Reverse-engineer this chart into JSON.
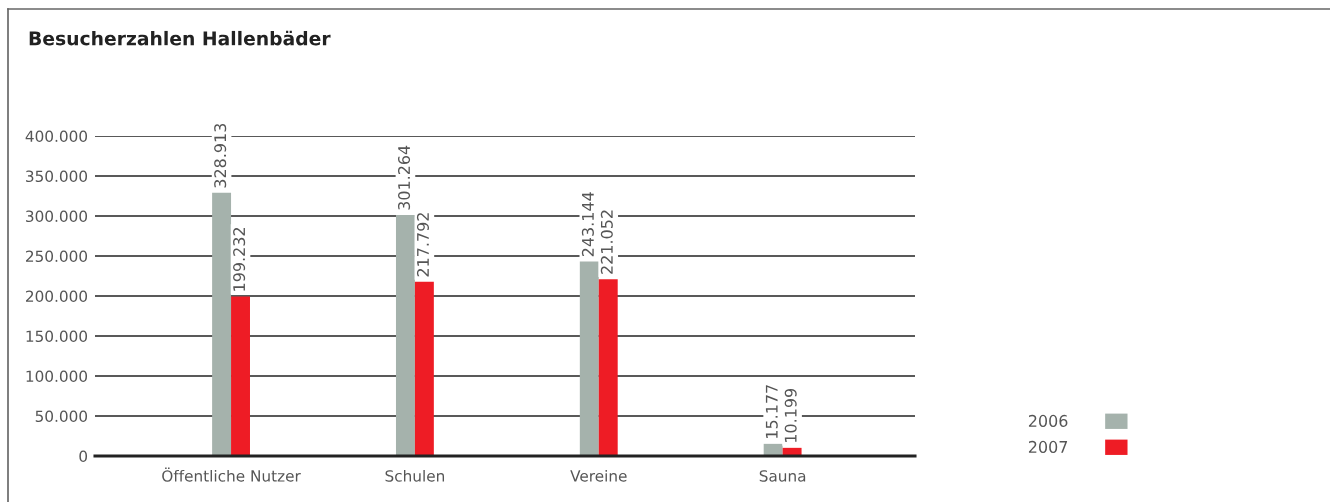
{
  "chart_data": {
    "type": "bar",
    "title": "Besucherzahlen Hallenbäder",
    "categories": [
      "Öffentliche Nutzer",
      "Schulen",
      "Vereine",
      "Sauna"
    ],
    "series": [
      {
        "name": "2006",
        "color": "#a5b2ac",
        "values": [
          328913,
          301264,
          243144,
          15177
        ],
        "value_labels": [
          "328.913",
          "301.264",
          "243.144",
          "15.177"
        ]
      },
      {
        "name": "2007",
        "color": "#ee1c25",
        "values": [
          199232,
          217792,
          221052,
          10199
        ],
        "value_labels": [
          "199.232",
          "217.792",
          "221.052",
          "10.199"
        ]
      }
    ],
    "ylim": [
      0,
      400000
    ],
    "yticks": [
      {
        "value": 0,
        "label": "0"
      },
      {
        "value": 50000,
        "label": "50.000"
      },
      {
        "value": 100000,
        "label": "100.000"
      },
      {
        "value": 150000,
        "label": "150.000"
      },
      {
        "value": 200000,
        "label": "200.000"
      },
      {
        "value": 250000,
        "label": "250.000"
      },
      {
        "value": 300000,
        "label": "300.000"
      },
      {
        "value": 350000,
        "label": "350.000"
      },
      {
        "value": 400000,
        "label": "400.000"
      }
    ],
    "grid": "y",
    "legend": "bottom right"
  }
}
